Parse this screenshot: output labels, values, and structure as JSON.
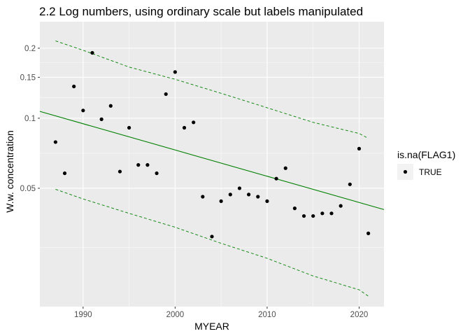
{
  "chart_data": {
    "type": "scatter",
    "title": "2.2 Log numbers, using ordinary scale but labels manipulated",
    "xlabel": "MYEAR",
    "ylabel": "W.w. concentration",
    "y_scale": "log",
    "xlim": [
      1985.3,
      2022.7
    ],
    "ylim": [
      0.0155,
      0.26
    ],
    "x_ticks": [
      1990,
      2000,
      2010,
      2020
    ],
    "x_tick_labels": [
      "1990",
      "2000",
      "2010",
      "2020"
    ],
    "y_ticks": [
      0.05,
      0.1,
      0.15,
      0.2
    ],
    "y_tick_labels": [
      "0.05",
      "0.1",
      "0.15",
      "0.2"
    ],
    "grid": true,
    "background": "#ebebeb",
    "legend": {
      "title": "is.na(FLAG1)",
      "position": "right",
      "entries": [
        {
          "label": "TRUE",
          "color": "#000000"
        }
      ]
    },
    "points": {
      "color": "#000000",
      "x": [
        1987,
        1988,
        1989,
        1990,
        1991,
        1992,
        1993,
        1994,
        1995,
        1996,
        1997,
        1998,
        1999,
        2000,
        2001,
        2002,
        2003,
        2004,
        2005,
        2006,
        2007,
        2008,
        2009,
        2010,
        2011,
        2012,
        2013,
        2014,
        2015,
        2016,
        2017,
        2018,
        2019,
        2020,
        2021
      ],
      "y": [
        0.079,
        0.058,
        0.137,
        0.108,
        0.191,
        0.099,
        0.113,
        0.059,
        0.091,
        0.063,
        0.063,
        0.058,
        0.127,
        0.158,
        0.091,
        0.096,
        0.046,
        0.031,
        0.044,
        0.047,
        0.05,
        0.047,
        0.046,
        0.044,
        0.055,
        0.061,
        0.041,
        0.038,
        0.038,
        0.039,
        0.039,
        0.042,
        0.052,
        0.074,
        0.032
      ]
    },
    "trend": {
      "color": "#008000",
      "x": [
        1985.3,
        2022.7
      ],
      "y": [
        0.107,
        0.0405
      ]
    },
    "bands": [
      {
        "name": "upper",
        "color": "#008000",
        "dashed": true,
        "x": [
          1987,
          1990,
          1995,
          2000,
          2005,
          2010,
          2015,
          2020,
          2021
        ],
        "y": [
          0.215,
          0.196,
          0.166,
          0.147,
          0.128,
          0.111,
          0.096,
          0.086,
          0.082
        ]
      },
      {
        "name": "lower",
        "color": "#008000",
        "dashed": true,
        "x": [
          1987,
          1990,
          1995,
          2000,
          2005,
          2010,
          2015,
          2020,
          2021
        ],
        "y": [
          0.0495,
          0.045,
          0.039,
          0.034,
          0.029,
          0.025,
          0.021,
          0.0183,
          0.0172
        ]
      }
    ]
  }
}
